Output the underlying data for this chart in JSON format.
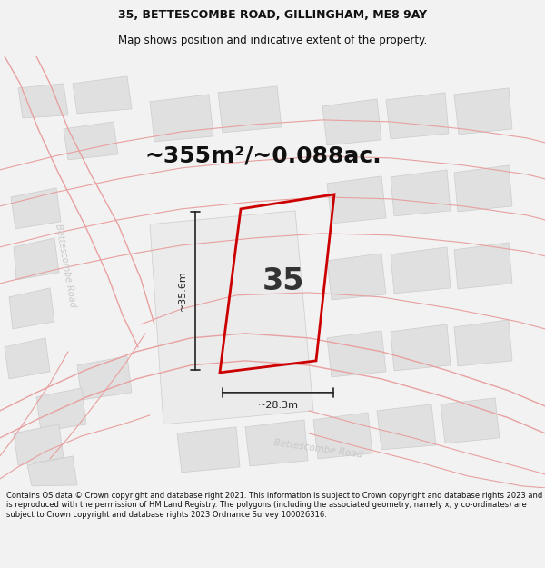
{
  "title_line1": "35, BETTESCOMBE ROAD, GILLINGHAM, ME8 9AY",
  "title_line2": "Map shows position and indicative extent of the property.",
  "area_text": "~355m²/~0.088ac.",
  "property_number": "35",
  "dim_height": "~35.6m",
  "dim_width": "~28.3m",
  "footer_text": "Contains OS data © Crown copyright and database right 2021. This information is subject to Crown copyright and database rights 2023 and is reproduced with the permission of HM Land Registry. The polygons (including the associated geometry, namely x, y co-ordinates) are subject to Crown copyright and database rights 2023 Ordnance Survey 100026316.",
  "bg_color": "#f2f2f2",
  "map_bg": "#f8f8f8",
  "block_fill": "#e0e0e0",
  "block_edge": "#cccccc",
  "road_color": "#e8a0a0",
  "plot_stroke": "#cc0000",
  "dim_color": "#222222",
  "road_label_color": "#c0c0c0",
  "title_color": "#111111",
  "footer_color": "#111111",
  "title_fontsize": 9.0,
  "subtitle_fontsize": 8.5,
  "area_fontsize": 18,
  "number_fontsize": 24,
  "dim_fontsize": 8,
  "footer_fontsize": 6.0
}
